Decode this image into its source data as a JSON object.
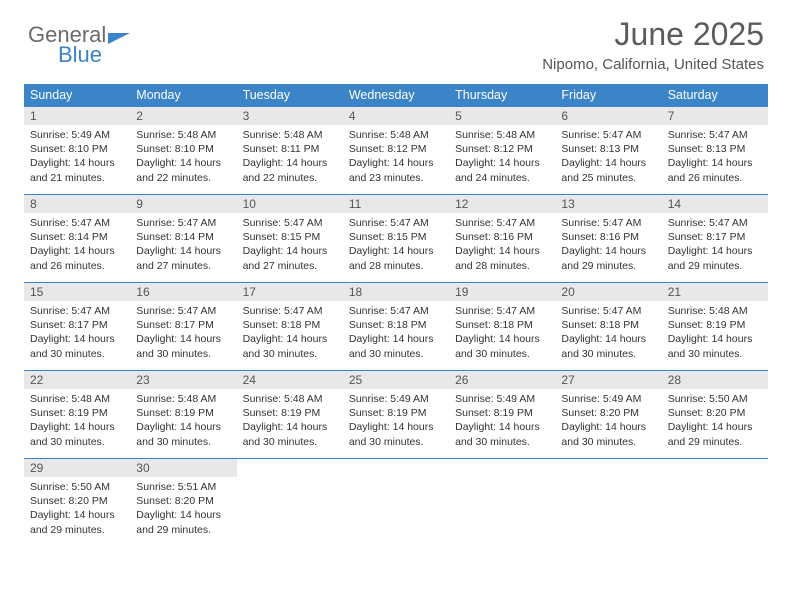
{
  "logo": {
    "line1": "General",
    "line2": "Blue"
  },
  "title": "June 2025",
  "location": "Nipomo, California, United States",
  "colors": {
    "accent": "#3a84c7",
    "header_text": "#ffffff",
    "daybar": "#e8e8e8",
    "text": "#333333"
  },
  "dayNames": [
    "Sunday",
    "Monday",
    "Tuesday",
    "Wednesday",
    "Thursday",
    "Friday",
    "Saturday"
  ],
  "weeks": [
    [
      {
        "n": "1",
        "sr": "5:49 AM",
        "ss": "8:10 PM",
        "dl": "14 hours and 21 minutes."
      },
      {
        "n": "2",
        "sr": "5:48 AM",
        "ss": "8:10 PM",
        "dl": "14 hours and 22 minutes."
      },
      {
        "n": "3",
        "sr": "5:48 AM",
        "ss": "8:11 PM",
        "dl": "14 hours and 22 minutes."
      },
      {
        "n": "4",
        "sr": "5:48 AM",
        "ss": "8:12 PM",
        "dl": "14 hours and 23 minutes."
      },
      {
        "n": "5",
        "sr": "5:48 AM",
        "ss": "8:12 PM",
        "dl": "14 hours and 24 minutes."
      },
      {
        "n": "6",
        "sr": "5:47 AM",
        "ss": "8:13 PM",
        "dl": "14 hours and 25 minutes."
      },
      {
        "n": "7",
        "sr": "5:47 AM",
        "ss": "8:13 PM",
        "dl": "14 hours and 26 minutes."
      }
    ],
    [
      {
        "n": "8",
        "sr": "5:47 AM",
        "ss": "8:14 PM",
        "dl": "14 hours and 26 minutes."
      },
      {
        "n": "9",
        "sr": "5:47 AM",
        "ss": "8:14 PM",
        "dl": "14 hours and 27 minutes."
      },
      {
        "n": "10",
        "sr": "5:47 AM",
        "ss": "8:15 PM",
        "dl": "14 hours and 27 minutes."
      },
      {
        "n": "11",
        "sr": "5:47 AM",
        "ss": "8:15 PM",
        "dl": "14 hours and 28 minutes."
      },
      {
        "n": "12",
        "sr": "5:47 AM",
        "ss": "8:16 PM",
        "dl": "14 hours and 28 minutes."
      },
      {
        "n": "13",
        "sr": "5:47 AM",
        "ss": "8:16 PM",
        "dl": "14 hours and 29 minutes."
      },
      {
        "n": "14",
        "sr": "5:47 AM",
        "ss": "8:17 PM",
        "dl": "14 hours and 29 minutes."
      }
    ],
    [
      {
        "n": "15",
        "sr": "5:47 AM",
        "ss": "8:17 PM",
        "dl": "14 hours and 30 minutes."
      },
      {
        "n": "16",
        "sr": "5:47 AM",
        "ss": "8:17 PM",
        "dl": "14 hours and 30 minutes."
      },
      {
        "n": "17",
        "sr": "5:47 AM",
        "ss": "8:18 PM",
        "dl": "14 hours and 30 minutes."
      },
      {
        "n": "18",
        "sr": "5:47 AM",
        "ss": "8:18 PM",
        "dl": "14 hours and 30 minutes."
      },
      {
        "n": "19",
        "sr": "5:47 AM",
        "ss": "8:18 PM",
        "dl": "14 hours and 30 minutes."
      },
      {
        "n": "20",
        "sr": "5:47 AM",
        "ss": "8:18 PM",
        "dl": "14 hours and 30 minutes."
      },
      {
        "n": "21",
        "sr": "5:48 AM",
        "ss": "8:19 PM",
        "dl": "14 hours and 30 minutes."
      }
    ],
    [
      {
        "n": "22",
        "sr": "5:48 AM",
        "ss": "8:19 PM",
        "dl": "14 hours and 30 minutes."
      },
      {
        "n": "23",
        "sr": "5:48 AM",
        "ss": "8:19 PM",
        "dl": "14 hours and 30 minutes."
      },
      {
        "n": "24",
        "sr": "5:48 AM",
        "ss": "8:19 PM",
        "dl": "14 hours and 30 minutes."
      },
      {
        "n": "25",
        "sr": "5:49 AM",
        "ss": "8:19 PM",
        "dl": "14 hours and 30 minutes."
      },
      {
        "n": "26",
        "sr": "5:49 AM",
        "ss": "8:19 PM",
        "dl": "14 hours and 30 minutes."
      },
      {
        "n": "27",
        "sr": "5:49 AM",
        "ss": "8:20 PM",
        "dl": "14 hours and 30 minutes."
      },
      {
        "n": "28",
        "sr": "5:50 AM",
        "ss": "8:20 PM",
        "dl": "14 hours and 29 minutes."
      }
    ],
    [
      {
        "n": "29",
        "sr": "5:50 AM",
        "ss": "8:20 PM",
        "dl": "14 hours and 29 minutes."
      },
      {
        "n": "30",
        "sr": "5:51 AM",
        "ss": "8:20 PM",
        "dl": "14 hours and 29 minutes."
      },
      null,
      null,
      null,
      null,
      null
    ]
  ],
  "labels": {
    "sunrise": "Sunrise:",
    "sunset": "Sunset:",
    "daylight": "Daylight:"
  }
}
